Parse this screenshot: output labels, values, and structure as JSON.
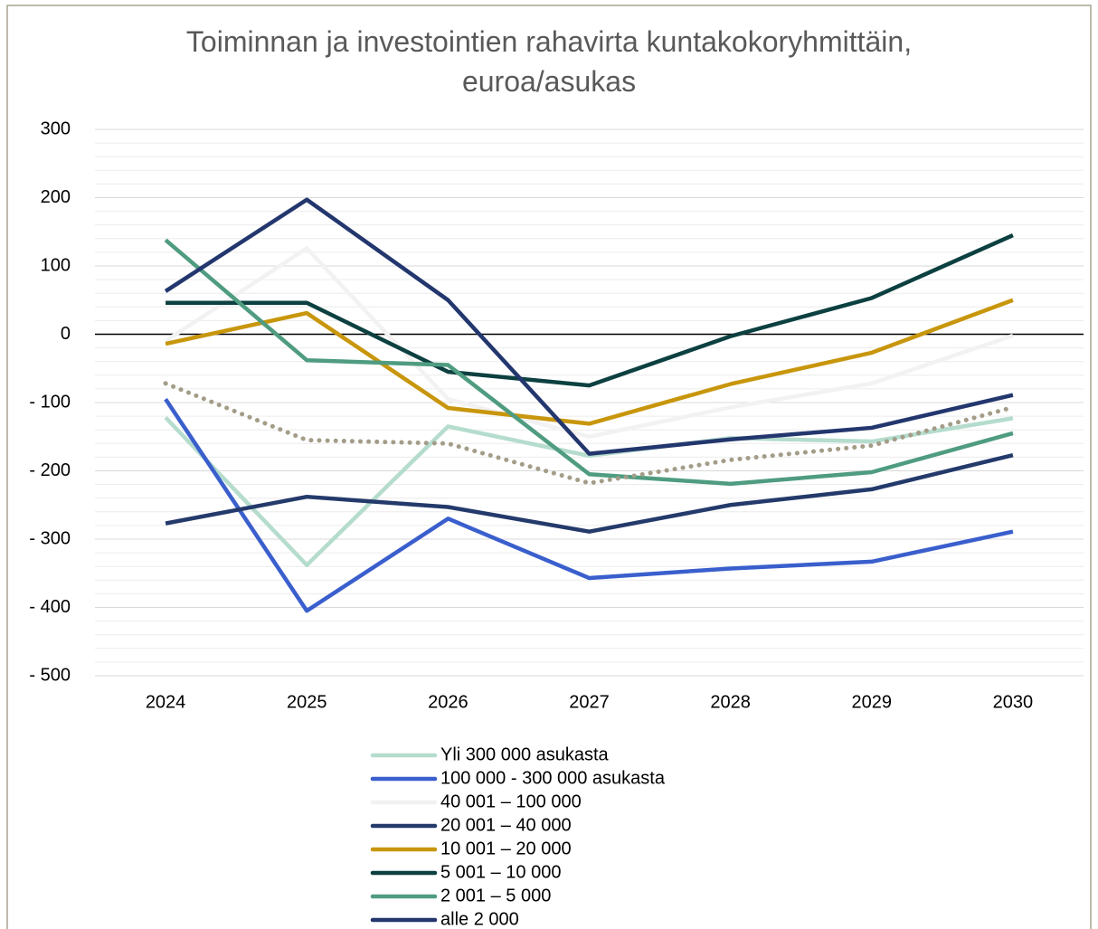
{
  "chart_data": {
    "type": "line",
    "title": "Toiminnan ja investointien rahavirta kuntakokoryhmittäin, euroa/asukas",
    "categories": [
      "2024",
      "2025",
      "2026",
      "2027",
      "2028",
      "2029",
      "2030"
    ],
    "ylim": [
      -500,
      300
    ],
    "yticks": [
      {
        "value": -500,
        "label": "- 500"
      },
      {
        "value": -400,
        "label": "- 400"
      },
      {
        "value": -300,
        "label": "- 300"
      },
      {
        "value": -200,
        "label": "- 200"
      },
      {
        "value": -100,
        "label": "- 100"
      },
      0,
      100,
      200,
      300
    ],
    "negative_tick_color": "#ff0000",
    "minor_yticks": [
      -480,
      -460,
      -440,
      -420,
      -380,
      -360,
      -340,
      -320,
      -280,
      -260,
      -240,
      -220,
      -180,
      -160,
      -140,
      -120,
      -80,
      -60,
      -40,
      -20,
      20,
      40,
      60,
      80,
      120,
      140,
      160,
      180,
      220,
      240,
      260,
      280
    ],
    "grid": true,
    "legend": "bottom",
    "series": [
      {
        "name": "Yli 300 000 asukasta",
        "color": "#b5dccd",
        "values": [
          -122,
          -338,
          -135,
          -178,
          -152,
          -157,
          -123
        ]
      },
      {
        "name": "100 000 - 300 000 asukasta",
        "color": "#3a5fcd",
        "values": [
          -95,
          -405,
          -270,
          -357,
          -343,
          -333,
          -289
        ]
      },
      {
        "name": "40 001 – 100 000",
        "color": "#f2f2f2",
        "values": [
          -10,
          126,
          -95,
          -150,
          -107,
          -72,
          -2
        ]
      },
      {
        "name": "20 001 – 40 000",
        "color": "#243a6b",
        "values": [
          -277,
          -238,
          -253,
          -289,
          -250,
          -227,
          -177
        ]
      },
      {
        "name": "10 001 – 20 000",
        "color": "#c8960c",
        "values": [
          -14,
          31,
          -108,
          -131,
          -73,
          -27,
          50
        ]
      },
      {
        "name": "5 001 – 10 000",
        "color": "#0d4040",
        "values": [
          46,
          46,
          -55,
          -75,
          -3,
          53,
          145
        ]
      },
      {
        "name": "2 001 – 5 000",
        "color": "#4f9c80",
        "values": [
          138,
          -38,
          -45,
          -205,
          -219,
          -202,
          -145
        ]
      },
      {
        "name": "alle 2 000",
        "color": "#23376e",
        "values": [
          63,
          197,
          50,
          -175,
          -154,
          -137,
          -89
        ]
      },
      {
        "color": "#a39d88",
        "dash": "dotted",
        "values": [
          -72,
          -155,
          -160,
          -218,
          -184,
          -163,
          -107
        ]
      }
    ]
  }
}
